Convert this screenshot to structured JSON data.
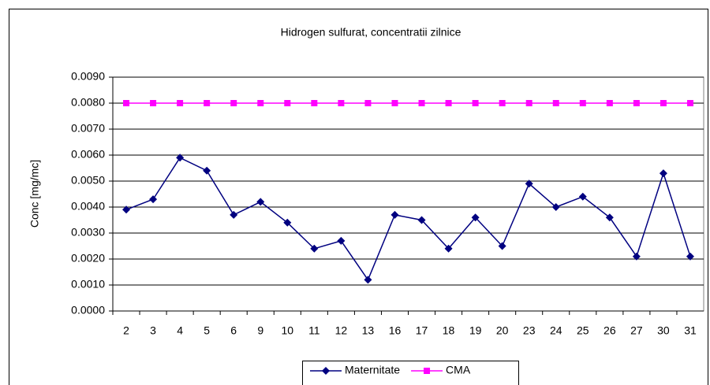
{
  "chart_data": {
    "type": "line",
    "title": "Hidrogen sulfurat, concentratii zilnice",
    "y_label": "Conc [mg/mc]",
    "categories": [
      "2",
      "3",
      "4",
      "5",
      "6",
      "9",
      "10",
      "11",
      "12",
      "13",
      "16",
      "17",
      "18",
      "19",
      "20",
      "23",
      "24",
      "25",
      "26",
      "27",
      "30",
      "31"
    ],
    "series": [
      {
        "name": "Maternitate",
        "color": "#000080",
        "marker": "diamond",
        "values": [
          0.0039,
          0.0043,
          0.0059,
          0.0054,
          0.0037,
          0.0042,
          0.0034,
          0.0024,
          0.0027,
          0.0012,
          0.0037,
          0.0035,
          0.0024,
          0.0036,
          0.0025,
          0.0049,
          0.004,
          0.0044,
          0.0036,
          0.0021,
          0.0053,
          0.0021
        ]
      },
      {
        "name": "CMA",
        "color": "#ff00ff",
        "marker": "square",
        "values": [
          0.008,
          0.008,
          0.008,
          0.008,
          0.008,
          0.008,
          0.008,
          0.008,
          0.008,
          0.008,
          0.008,
          0.008,
          0.008,
          0.008,
          0.008,
          0.008,
          0.008,
          0.008,
          0.008,
          0.008,
          0.008,
          0.008
        ]
      }
    ],
    "ylim": [
      0,
      0.009
    ],
    "yticks": [
      {
        "value": 0,
        "label": "0.0000"
      },
      {
        "value": 0.001,
        "label": "0.0010"
      },
      {
        "value": 0.002,
        "label": "0.0020"
      },
      {
        "value": 0.003,
        "label": "0.0030"
      },
      {
        "value": 0.004,
        "label": "0.0040"
      },
      {
        "value": 0.005,
        "label": "0.0050"
      },
      {
        "value": 0.006,
        "label": "0.0060"
      },
      {
        "value": 0.007,
        "label": "0.0070"
      },
      {
        "value": 0.008,
        "label": "0.0080"
      },
      {
        "value": 0.009,
        "label": "0.0090"
      }
    ],
    "grid": true,
    "legend": "bottom"
  }
}
